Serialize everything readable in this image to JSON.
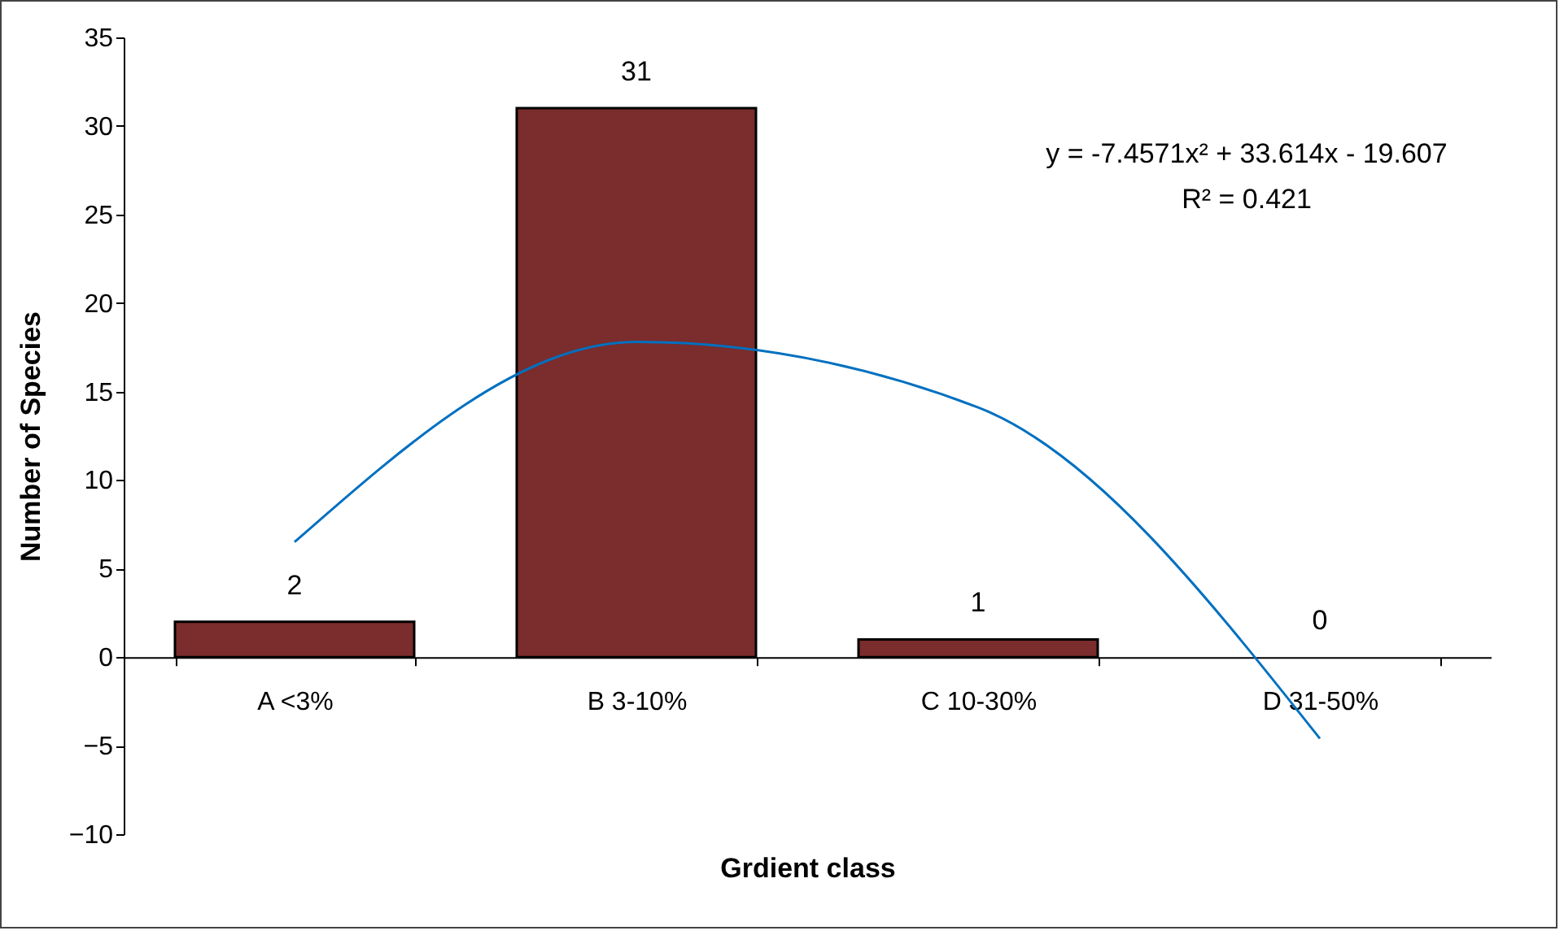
{
  "chart_data": {
    "type": "bar",
    "xlabel": "Grdient class",
    "ylabel": "Number of Species",
    "categories": [
      "A <3%",
      "B 3-10%",
      "C  10-30%",
      "D  31-50%"
    ],
    "series": [
      {
        "color": "#7b2c2c",
        "values": [
          2,
          31,
          1,
          0
        ],
        "value_labels": [
          "2",
          "31",
          "1",
          "0"
        ]
      },
      {
        "type": "line",
        "color": "#0070c0",
        "values": [
          6.5,
          17.8,
          14.1,
          -4.6
        ]
      }
    ],
    "ylim": [
      -10,
      35
    ],
    "yticks": [
      -10,
      -5,
      0,
      5,
      10,
      15,
      20,
      25,
      30,
      35
    ],
    "grid": false,
    "annotations": [
      "y = -7.4571x² + 33.614x - 19.607",
      "R² = 0.421"
    ]
  }
}
